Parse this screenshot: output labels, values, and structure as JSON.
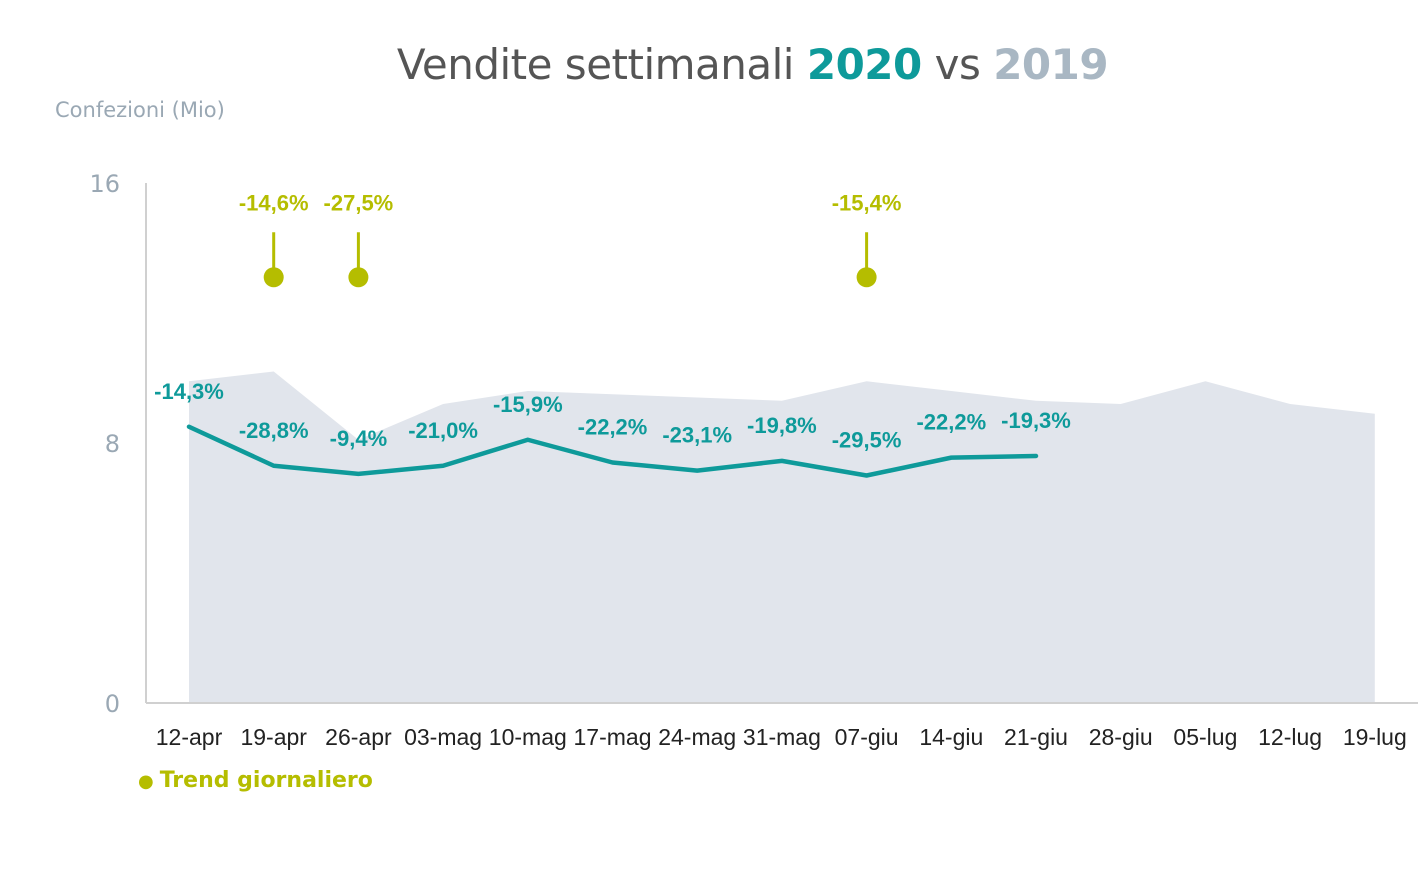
{
  "title": {
    "prefix": "Vendite settimanali ",
    "year_a": "2020",
    "mid": " vs ",
    "year_b": "2019"
  },
  "colors": {
    "series_2020": "#0e9a9a",
    "series_2019": "#e1e5ec",
    "trend": "#b5bd00",
    "axis": "#d0d0d0",
    "tick_text": "#9aa8b4"
  },
  "legend": {
    "dot": "●",
    "label": "Trend giornaliero"
  },
  "chart_data": {
    "type": "line",
    "title": "Vendite settimanali 2020 vs 2019",
    "ylabel": "Confezioni (Mio)",
    "xlabel": "",
    "ylim": [
      0,
      16
    ],
    "yticks": [
      0,
      8,
      16
    ],
    "grid": false,
    "categories": [
      "12-apr",
      "19-apr",
      "26-apr",
      "03-mag",
      "10-mag",
      "17-mag",
      "24-mag",
      "31-mag",
      "07-giu",
      "14-giu",
      "21-giu",
      "28-giu",
      "05-lug",
      "12-lug",
      "19-lug"
    ],
    "series": [
      {
        "name": "2019",
        "kind": "area",
        "values": [
          9.9,
          10.2,
          8.1,
          9.2,
          9.6,
          9.5,
          9.4,
          9.3,
          9.9,
          9.6,
          9.3,
          9.2,
          9.9,
          9.2,
          8.9
        ]
      },
      {
        "name": "2020",
        "kind": "line",
        "values": [
          8.5,
          7.3,
          7.05,
          7.3,
          8.1,
          7.4,
          7.15,
          7.45,
          7.0,
          7.55,
          7.6,
          null,
          null,
          null,
          null
        ],
        "labels": [
          "-14,3%",
          "-28,8%",
          "-9,4%",
          "-21,0%",
          "-15,9%",
          "-22,2%",
          "-23,1%",
          "-19,8%",
          "-29,5%",
          "-22,2%",
          "-19,3%",
          "",
          "",
          "",
          ""
        ]
      }
    ],
    "annotations": [
      {
        "category": "19-apr",
        "label": "-14,6%",
        "value": 13.1
      },
      {
        "category": "26-apr",
        "label": "-27,5%",
        "value": 13.1
      },
      {
        "category": "07-giu",
        "label": "-15,4%",
        "value": 13.1
      }
    ]
  }
}
